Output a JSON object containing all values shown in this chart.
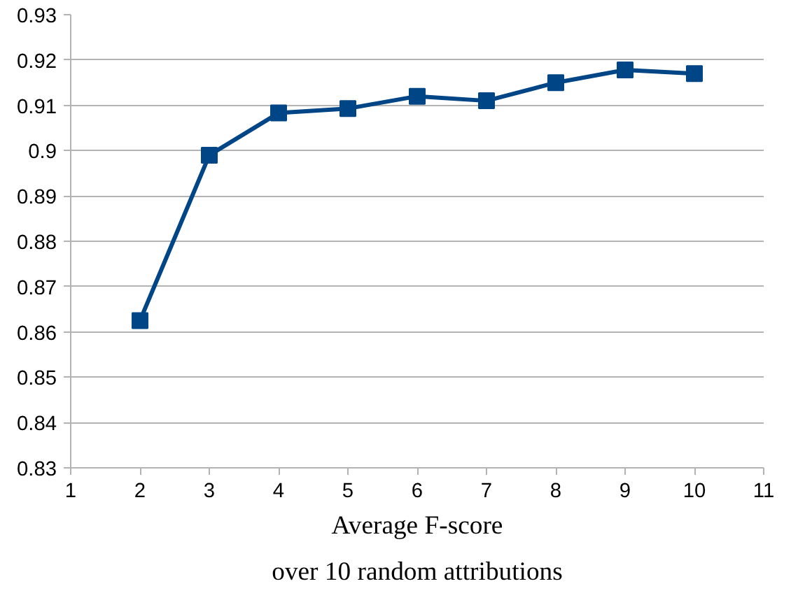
{
  "chart_data": {
    "type": "line",
    "xlabel": "Average F-score\nover 10 random attributions",
    "x": [
      2,
      3,
      4,
      5,
      6,
      7,
      8,
      9,
      10
    ],
    "series": [
      {
        "color": "#004586",
        "values": [
          0.8625,
          0.899,
          0.9083,
          0.9093,
          0.912,
          0.911,
          0.915,
          0.9178,
          0.917
        ]
      }
    ],
    "xlim": [
      1,
      11
    ],
    "xticks": [
      1,
      2,
      3,
      4,
      5,
      6,
      7,
      8,
      9,
      10,
      11
    ],
    "ylim": [
      0.83,
      0.93
    ],
    "yticks": [
      0.83,
      0.84,
      0.85,
      0.86,
      0.87,
      0.88,
      0.89,
      0.9,
      0.91,
      0.92,
      0.93
    ],
    "grid": "y",
    "marker": "square",
    "line_style": "solid"
  }
}
